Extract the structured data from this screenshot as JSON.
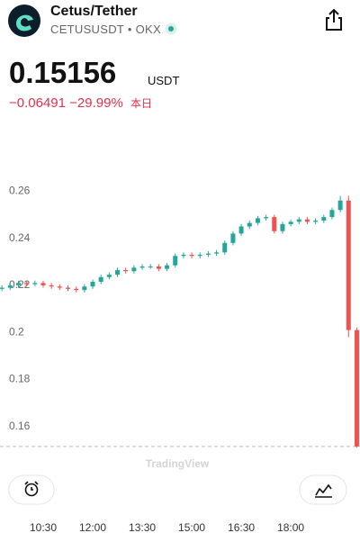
{
  "header": {
    "title": "Cetus/Tether",
    "symbol": "CETUSUSDT",
    "separator": "•",
    "exchange": "OKX",
    "price": 0.15156,
    "price_unit": "USDT",
    "change": "−0.06491",
    "change_percent": "−29.99%",
    "period": "本日"
  },
  "watermark": "TradingView",
  "chart_data": {
    "type": "candlestick",
    "categories": [
      null,
      null,
      null,
      null,
      null,
      "10:30",
      null,
      null,
      null,
      null,
      null,
      "12:00",
      null,
      null,
      null,
      null,
      null,
      "13:30",
      null,
      null,
      null,
      null,
      null,
      "15:00",
      null,
      null,
      null,
      null,
      null,
      "16:30",
      null,
      null,
      null,
      null,
      null,
      "18:00",
      null,
      null,
      null,
      null,
      null,
      null,
      null,
      null
    ],
    "open": [
      0.2185,
      0.219,
      0.22,
      0.221,
      0.2205,
      0.221,
      0.22,
      0.2195,
      0.219,
      0.2185,
      0.218,
      0.2195,
      0.2215,
      0.2235,
      0.2245,
      0.2265,
      0.226,
      0.2275,
      0.228,
      0.228,
      0.227,
      0.2285,
      0.2325,
      0.233,
      0.2325,
      0.233,
      0.2335,
      0.234,
      0.238,
      0.242,
      0.245,
      0.2465,
      0.2485,
      0.249,
      0.243,
      0.246,
      0.247,
      0.248,
      0.247,
      0.2475,
      0.249,
      0.252,
      0.256,
      0.201
    ],
    "high": [
      0.22,
      0.221,
      0.222,
      0.222,
      0.222,
      0.222,
      0.221,
      0.2205,
      0.22,
      0.2195,
      0.2205,
      0.2225,
      0.2245,
      0.2255,
      0.2275,
      0.2275,
      0.2285,
      0.229,
      0.229,
      0.229,
      0.2295,
      0.2335,
      0.234,
      0.234,
      0.234,
      0.2345,
      0.235,
      0.239,
      0.243,
      0.246,
      0.2475,
      0.2495,
      0.25,
      0.25,
      0.247,
      0.248,
      0.249,
      0.249,
      0.2485,
      0.25,
      0.253,
      0.258,
      0.258,
      0.202
    ],
    "low": [
      0.2175,
      0.218,
      0.219,
      0.2195,
      0.2195,
      0.219,
      0.2185,
      0.218,
      0.2175,
      0.217,
      0.217,
      0.2185,
      0.2205,
      0.2225,
      0.2235,
      0.225,
      0.225,
      0.2265,
      0.227,
      0.226,
      0.226,
      0.2275,
      0.2315,
      0.2315,
      0.2315,
      0.232,
      0.2325,
      0.233,
      0.237,
      0.241,
      0.244,
      0.2455,
      0.2475,
      0.242,
      0.242,
      0.245,
      0.246,
      0.246,
      0.246,
      0.2465,
      0.248,
      0.251,
      0.198,
      0.151
    ],
    "close": [
      0.219,
      0.22,
      0.221,
      0.2205,
      0.221,
      0.22,
      0.2195,
      0.219,
      0.2185,
      0.218,
      0.2195,
      0.2215,
      0.2235,
      0.2245,
      0.2265,
      0.226,
      0.2275,
      0.228,
      0.228,
      0.227,
      0.2285,
      0.2325,
      0.233,
      0.2325,
      0.233,
      0.2335,
      0.234,
      0.238,
      0.242,
      0.245,
      0.2465,
      0.2485,
      0.249,
      0.243,
      0.246,
      0.247,
      0.248,
      0.247,
      0.2475,
      0.249,
      0.252,
      0.256,
      0.201,
      0.15156
    ],
    "up_color": "#26a69a",
    "down_color": "#ef5350",
    "ylim": [
      0.15,
      0.28
    ],
    "yticks": [
      0.16,
      0.18,
      0.2,
      0.22,
      0.24,
      0.26
    ],
    "grid": false
  }
}
